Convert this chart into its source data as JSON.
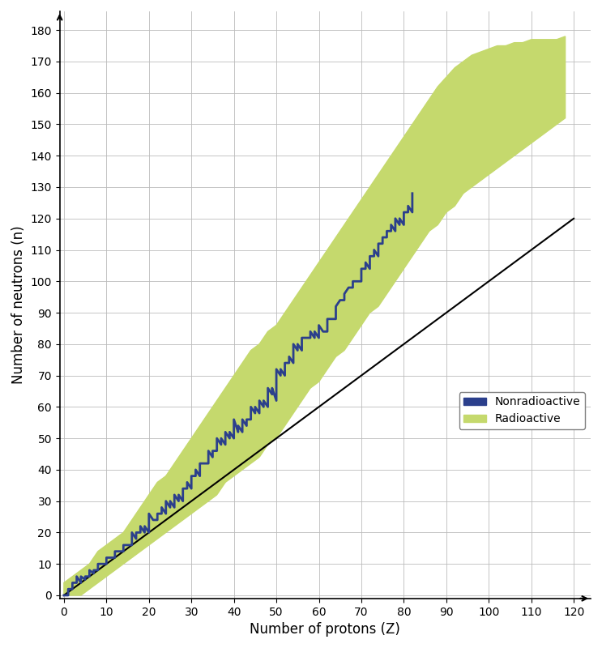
{
  "xlabel": "Number of protons (Z)",
  "ylabel": "Number of neutrons (n)",
  "xlim": [
    -1,
    124
  ],
  "ylim": [
    -1,
    186
  ],
  "xticks": [
    0,
    10,
    20,
    30,
    40,
    50,
    60,
    70,
    80,
    90,
    100,
    110,
    120
  ],
  "yticks": [
    0,
    10,
    20,
    30,
    40,
    50,
    60,
    70,
    80,
    90,
    100,
    110,
    120,
    130,
    140,
    150,
    160,
    170,
    180
  ],
  "nz_line_x": [
    0,
    120
  ],
  "nz_line_y": [
    0,
    120
  ],
  "nz_line_color": "black",
  "nz_line_lw": 1.5,
  "radioactive_color": "#c5d96d",
  "nonradioactive_color": "#2b3f8c",
  "legend_nonradioactive": "Nonradioactive",
  "legend_radioactive": "Radioactive",
  "grid_color": "#bbbbbb",
  "background_color": "#ffffff",
  "stability_line": [
    [
      0,
      0
    ],
    [
      1,
      0
    ],
    [
      1,
      2
    ],
    [
      2,
      2
    ],
    [
      2,
      4
    ],
    [
      3,
      4
    ],
    [
      3,
      6
    ],
    [
      4,
      4
    ],
    [
      4,
      6
    ],
    [
      5,
      5
    ],
    [
      5,
      6
    ],
    [
      6,
      6
    ],
    [
      6,
      8
    ],
    [
      7,
      7
    ],
    [
      7,
      8
    ],
    [
      8,
      8
    ],
    [
      8,
      9
    ],
    [
      8,
      10
    ],
    [
      9,
      10
    ],
    [
      10,
      10
    ],
    [
      10,
      12
    ],
    [
      11,
      12
    ],
    [
      12,
      12
    ],
    [
      12,
      14
    ],
    [
      13,
      14
    ],
    [
      14,
      14
    ],
    [
      14,
      16
    ],
    [
      15,
      16
    ],
    [
      16,
      16
    ],
    [
      16,
      18
    ],
    [
      16,
      20
    ],
    [
      17,
      18
    ],
    [
      17,
      20
    ],
    [
      18,
      20
    ],
    [
      18,
      22
    ],
    [
      19,
      20
    ],
    [
      19,
      22
    ],
    [
      20,
      20
    ],
    [
      20,
      22
    ],
    [
      20,
      24
    ],
    [
      20,
      26
    ],
    [
      21,
      24
    ],
    [
      22,
      24
    ],
    [
      22,
      26
    ],
    [
      23,
      26
    ],
    [
      23,
      28
    ],
    [
      24,
      26
    ],
    [
      24,
      28
    ],
    [
      24,
      30
    ],
    [
      25,
      28
    ],
    [
      25,
      30
    ],
    [
      26,
      28
    ],
    [
      26,
      30
    ],
    [
      26,
      32
    ],
    [
      27,
      30
    ],
    [
      27,
      32
    ],
    [
      28,
      30
    ],
    [
      28,
      32
    ],
    [
      28,
      34
    ],
    [
      29,
      34
    ],
    [
      29,
      36
    ],
    [
      30,
      34
    ],
    [
      30,
      36
    ],
    [
      30,
      38
    ],
    [
      31,
      38
    ],
    [
      31,
      40
    ],
    [
      32,
      38
    ],
    [
      32,
      40
    ],
    [
      32,
      42
    ],
    [
      33,
      42
    ],
    [
      34,
      42
    ],
    [
      34,
      44
    ],
    [
      34,
      46
    ],
    [
      35,
      44
    ],
    [
      35,
      46
    ],
    [
      36,
      46
    ],
    [
      36,
      48
    ],
    [
      36,
      50
    ],
    [
      37,
      48
    ],
    [
      37,
      50
    ],
    [
      38,
      48
    ],
    [
      38,
      50
    ],
    [
      38,
      52
    ],
    [
      39,
      50
    ],
    [
      39,
      52
    ],
    [
      40,
      50
    ],
    [
      40,
      52
    ],
    [
      40,
      54
    ],
    [
      40,
      56
    ],
    [
      41,
      52
    ],
    [
      41,
      54
    ],
    [
      42,
      52
    ],
    [
      42,
      54
    ],
    [
      42,
      56
    ],
    [
      43,
      54
    ],
    [
      43,
      56
    ],
    [
      44,
      56
    ],
    [
      44,
      58
    ],
    [
      44,
      60
    ],
    [
      45,
      58
    ],
    [
      45,
      60
    ],
    [
      46,
      58
    ],
    [
      46,
      60
    ],
    [
      46,
      62
    ],
    [
      47,
      60
    ],
    [
      47,
      62
    ],
    [
      48,
      60
    ],
    [
      48,
      62
    ],
    [
      48,
      64
    ],
    [
      48,
      66
    ],
    [
      49,
      64
    ],
    [
      49,
      66
    ],
    [
      50,
      62
    ],
    [
      50,
      64
    ],
    [
      50,
      66
    ],
    [
      50,
      68
    ],
    [
      50,
      70
    ],
    [
      50,
      72
    ],
    [
      51,
      70
    ],
    [
      51,
      72
    ],
    [
      52,
      70
    ],
    [
      52,
      72
    ],
    [
      52,
      74
    ],
    [
      53,
      74
    ],
    [
      53,
      76
    ],
    [
      54,
      74
    ],
    [
      54,
      76
    ],
    [
      54,
      78
    ],
    [
      54,
      80
    ],
    [
      55,
      78
    ],
    [
      55,
      80
    ],
    [
      56,
      78
    ],
    [
      56,
      80
    ],
    [
      56,
      82
    ],
    [
      57,
      82
    ],
    [
      58,
      82
    ],
    [
      58,
      84
    ],
    [
      59,
      82
    ],
    [
      59,
      84
    ],
    [
      60,
      82
    ],
    [
      60,
      84
    ],
    [
      60,
      86
    ],
    [
      61,
      84
    ],
    [
      62,
      84
    ],
    [
      62,
      86
    ],
    [
      62,
      88
    ],
    [
      63,
      88
    ],
    [
      64,
      88
    ],
    [
      64,
      90
    ],
    [
      64,
      92
    ],
    [
      65,
      94
    ],
    [
      66,
      94
    ],
    [
      66,
      96
    ],
    [
      67,
      98
    ],
    [
      68,
      98
    ],
    [
      68,
      100
    ],
    [
      69,
      100
    ],
    [
      70,
      100
    ],
    [
      70,
      102
    ],
    [
      70,
      104
    ],
    [
      71,
      104
    ],
    [
      71,
      106
    ],
    [
      72,
      104
    ],
    [
      72,
      106
    ],
    [
      72,
      108
    ],
    [
      73,
      108
    ],
    [
      73,
      110
    ],
    [
      74,
      108
    ],
    [
      74,
      110
    ],
    [
      74,
      112
    ],
    [
      75,
      112
    ],
    [
      75,
      114
    ],
    [
      76,
      114
    ],
    [
      76,
      116
    ],
    [
      77,
      116
    ],
    [
      77,
      118
    ],
    [
      78,
      116
    ],
    [
      78,
      118
    ],
    [
      78,
      120
    ],
    [
      79,
      118
    ],
    [
      79,
      120
    ],
    [
      80,
      118
    ],
    [
      80,
      120
    ],
    [
      80,
      122
    ],
    [
      81,
      122
    ],
    [
      81,
      124
    ],
    [
      82,
      122
    ],
    [
      82,
      124
    ],
    [
      82,
      126
    ],
    [
      82,
      128
    ]
  ],
  "band_upper": [
    [
      0,
      4
    ],
    [
      2,
      6
    ],
    [
      4,
      8
    ],
    [
      6,
      10
    ],
    [
      8,
      14
    ],
    [
      10,
      16
    ],
    [
      12,
      18
    ],
    [
      14,
      20
    ],
    [
      16,
      24
    ],
    [
      18,
      28
    ],
    [
      20,
      32
    ],
    [
      22,
      36
    ],
    [
      24,
      38
    ],
    [
      26,
      42
    ],
    [
      28,
      46
    ],
    [
      30,
      50
    ],
    [
      32,
      54
    ],
    [
      34,
      58
    ],
    [
      36,
      62
    ],
    [
      38,
      66
    ],
    [
      40,
      70
    ],
    [
      42,
      74
    ],
    [
      44,
      78
    ],
    [
      46,
      80
    ],
    [
      48,
      84
    ],
    [
      50,
      86
    ],
    [
      52,
      90
    ],
    [
      54,
      94
    ],
    [
      56,
      98
    ],
    [
      58,
      102
    ],
    [
      60,
      106
    ],
    [
      62,
      110
    ],
    [
      64,
      114
    ],
    [
      66,
      118
    ],
    [
      68,
      122
    ],
    [
      70,
      126
    ],
    [
      72,
      130
    ],
    [
      74,
      134
    ],
    [
      76,
      138
    ],
    [
      78,
      142
    ],
    [
      80,
      146
    ],
    [
      82,
      150
    ],
    [
      84,
      154
    ],
    [
      86,
      158
    ],
    [
      88,
      162
    ],
    [
      90,
      165
    ],
    [
      92,
      168
    ],
    [
      94,
      170
    ],
    [
      96,
      172
    ],
    [
      98,
      173
    ],
    [
      100,
      174
    ],
    [
      102,
      175
    ],
    [
      104,
      175
    ],
    [
      106,
      176
    ],
    [
      108,
      176
    ],
    [
      110,
      177
    ],
    [
      112,
      177
    ],
    [
      114,
      177
    ],
    [
      116,
      177
    ],
    [
      118,
      178
    ]
  ],
  "band_lower": [
    [
      0,
      0
    ],
    [
      2,
      0
    ],
    [
      4,
      0
    ],
    [
      6,
      2
    ],
    [
      8,
      4
    ],
    [
      10,
      6
    ],
    [
      12,
      8
    ],
    [
      14,
      10
    ],
    [
      16,
      12
    ],
    [
      18,
      14
    ],
    [
      20,
      16
    ],
    [
      22,
      18
    ],
    [
      24,
      20
    ],
    [
      26,
      22
    ],
    [
      28,
      24
    ],
    [
      30,
      26
    ],
    [
      32,
      28
    ],
    [
      34,
      30
    ],
    [
      36,
      32
    ],
    [
      38,
      36
    ],
    [
      40,
      38
    ],
    [
      42,
      40
    ],
    [
      44,
      42
    ],
    [
      46,
      44
    ],
    [
      48,
      48
    ],
    [
      50,
      50
    ],
    [
      52,
      54
    ],
    [
      54,
      58
    ],
    [
      56,
      62
    ],
    [
      58,
      66
    ],
    [
      60,
      68
    ],
    [
      62,
      72
    ],
    [
      64,
      76
    ],
    [
      66,
      78
    ],
    [
      68,
      82
    ],
    [
      70,
      86
    ],
    [
      72,
      90
    ],
    [
      74,
      92
    ],
    [
      76,
      96
    ],
    [
      78,
      100
    ],
    [
      80,
      104
    ],
    [
      82,
      108
    ],
    [
      84,
      112
    ],
    [
      86,
      116
    ],
    [
      88,
      118
    ],
    [
      90,
      122
    ],
    [
      92,
      124
    ],
    [
      94,
      128
    ],
    [
      96,
      130
    ],
    [
      98,
      132
    ],
    [
      100,
      134
    ],
    [
      102,
      136
    ],
    [
      104,
      138
    ],
    [
      106,
      140
    ],
    [
      108,
      142
    ],
    [
      110,
      144
    ],
    [
      112,
      146
    ],
    [
      114,
      148
    ],
    [
      116,
      150
    ],
    [
      118,
      152
    ]
  ]
}
